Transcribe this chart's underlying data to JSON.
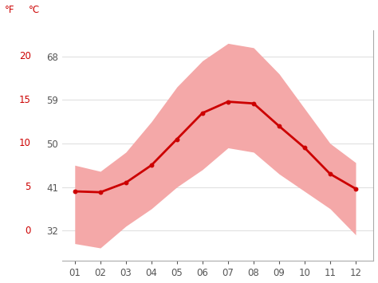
{
  "months": [
    1,
    2,
    3,
    4,
    5,
    6,
    7,
    8,
    9,
    10,
    11,
    12
  ],
  "month_labels": [
    "01",
    "02",
    "03",
    "04",
    "05",
    "06",
    "07",
    "08",
    "09",
    "10",
    "11",
    "12"
  ],
  "mean_c": [
    4.5,
    4.4,
    5.5,
    7.5,
    10.5,
    13.5,
    14.8,
    14.6,
    12.0,
    9.5,
    6.5,
    4.8
  ],
  "upper_c": [
    7.5,
    6.8,
    9.0,
    12.5,
    16.5,
    19.5,
    21.5,
    21.0,
    18.0,
    14.0,
    10.0,
    7.8
  ],
  "lower_c": [
    -1.5,
    -2.0,
    0.5,
    2.5,
    5.0,
    7.0,
    9.5,
    9.0,
    6.5,
    4.5,
    2.5,
    -0.5
  ],
  "line_color": "#cc0000",
  "band_color": "#f4a8a8",
  "background_color": "#ffffff",
  "axis_color": "#cc0000",
  "grid_color": "#e0e0e0",
  "yticks_f": [
    32,
    41,
    50,
    59,
    68
  ],
  "yticks_c": [
    0,
    5,
    10,
    15,
    20
  ],
  "ylim_c": [
    -3.5,
    23.0
  ],
  "label_f": "°F",
  "label_c": "°C",
  "tick_fontsize": 8.5,
  "label_fontsize": 8.5
}
